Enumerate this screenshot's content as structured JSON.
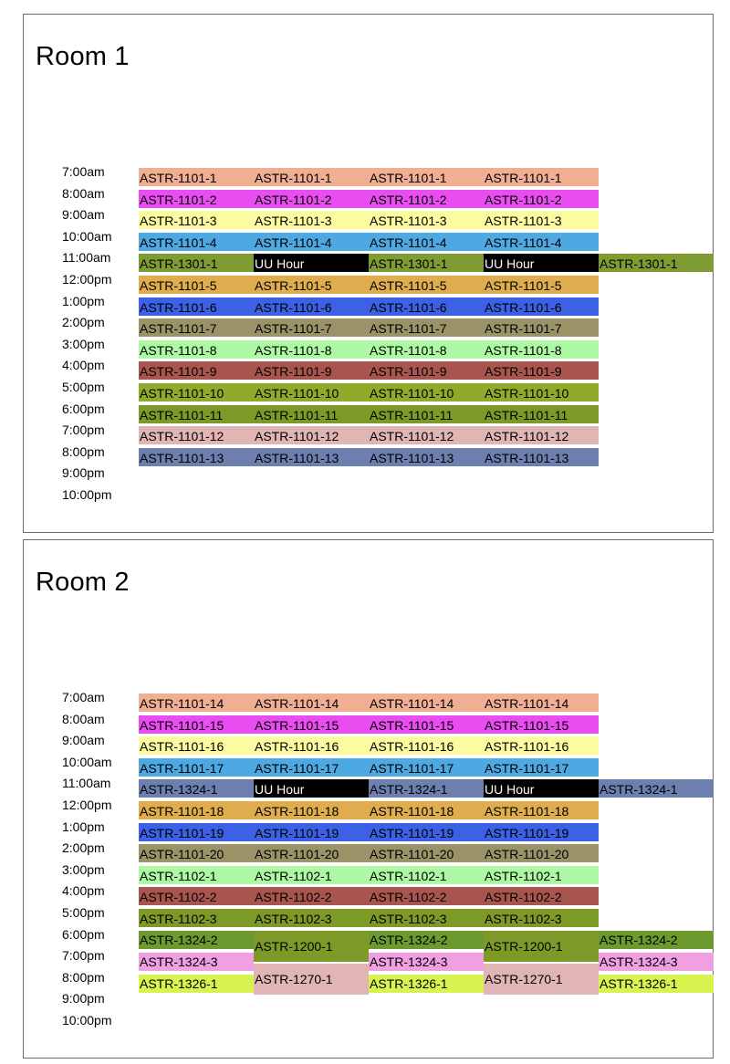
{
  "rooms": [
    {
      "title": "Room 1",
      "times": [
        "7:00am",
        "8:00am",
        "9:00am",
        "10:00am",
        "11:00am",
        "12:00pm",
        "1:00pm",
        "2:00pm",
        "3:00pm",
        "4:00pm",
        "5:00pm",
        "6:00pm",
        "7:00pm",
        "8:00pm",
        "9:00pm",
        "10:00pm"
      ],
      "rows": [
        {
          "color": "#f0ae92",
          "cells": [
            "ASTR-1101-1",
            "ASTR-1101-1",
            "ASTR-1101-1",
            "ASTR-1101-1"
          ]
        },
        {
          "color": "#e94cf0",
          "cells": [
            "ASTR-1101-2",
            "ASTR-1101-2",
            "ASTR-1101-2",
            "ASTR-1101-2"
          ]
        },
        {
          "color": "#fcfba0",
          "cells": [
            "ASTR-1101-3",
            "ASTR-1101-3",
            "ASTR-1101-3",
            "ASTR-1101-3"
          ]
        },
        {
          "color": "#4ea9e2",
          "cells": [
            "ASTR-1101-4",
            "ASTR-1101-4",
            "ASTR-1101-4",
            "ASTR-1101-4"
          ]
        },
        {
          "color": "#7f9c34",
          "cells": [
            "ASTR-1301-1",
            "UU Hour",
            "ASTR-1301-1",
            "UU Hour",
            "ASTR-1301-1"
          ]
        },
        {
          "color": "#e0ad4e",
          "cells": [
            "ASTR-1101-5",
            "ASTR-1101-5",
            "ASTR-1101-5",
            "ASTR-1101-5"
          ]
        },
        {
          "color": "#3c61e5",
          "cells": [
            "ASTR-1101-6",
            "ASTR-1101-6",
            "ASTR-1101-6",
            "ASTR-1101-6"
          ]
        },
        {
          "color": "#9a9368",
          "cells": [
            "ASTR-1101-7",
            "ASTR-1101-7",
            "ASTR-1101-7",
            "ASTR-1101-7"
          ]
        },
        {
          "color": "#adf8a3",
          "cells": [
            "ASTR-1101-8",
            "ASTR-1101-8",
            "ASTR-1101-8",
            "ASTR-1101-8"
          ]
        },
        {
          "color": "#a85550",
          "cells": [
            "ASTR-1101-9",
            "ASTR-1101-9",
            "ASTR-1101-9",
            "ASTR-1101-9"
          ]
        },
        {
          "color": "#8fab2c",
          "cells": [
            "ASTR-1101-10",
            "ASTR-1101-10",
            "ASTR-1101-10",
            "ASTR-1101-10"
          ]
        },
        {
          "color": "#7d9a28",
          "cells": [
            "ASTR-1101-11",
            "ASTR-1101-11",
            "ASTR-1101-11",
            "ASTR-1101-11"
          ]
        },
        {
          "color": "#e2b5b5",
          "cells": [
            "ASTR-1101-12",
            "ASTR-1101-12",
            "ASTR-1101-12",
            "ASTR-1101-12"
          ]
        },
        {
          "color": "#6c7fae",
          "cells": [
            "ASTR-1101-13",
            "ASTR-1101-13",
            "ASTR-1101-13",
            "ASTR-1101-13"
          ]
        }
      ]
    },
    {
      "title": "Room 2",
      "times": [
        "7:00am",
        "8:00am",
        "9:00am",
        "10:00am",
        "11:00am",
        "12:00pm",
        "1:00pm",
        "2:00pm",
        "3:00pm",
        "4:00pm",
        "5:00pm",
        "6:00pm",
        "7:00pm",
        "8:00pm",
        "9:00pm",
        "10:00pm"
      ],
      "rows": [
        {
          "color": "#f0ae92",
          "cells": [
            "ASTR-1101-14",
            "ASTR-1101-14",
            "ASTR-1101-14",
            "ASTR-1101-14"
          ]
        },
        {
          "color": "#e94cf0",
          "cells": [
            "ASTR-1101-15",
            "ASTR-1101-15",
            "ASTR-1101-15",
            "ASTR-1101-15"
          ]
        },
        {
          "color": "#fcfba0",
          "cells": [
            "ASTR-1101-16",
            "ASTR-1101-16",
            "ASTR-1101-16",
            "ASTR-1101-16"
          ]
        },
        {
          "color": "#4ea9e2",
          "cells": [
            "ASTR-1101-17",
            "ASTR-1101-17",
            "ASTR-1101-17",
            "ASTR-1101-17"
          ]
        },
        {
          "color": "#6c7fae",
          "cells": [
            "ASTR-1324-1",
            "UU Hour",
            "ASTR-1324-1",
            "UU Hour",
            "ASTR-1324-1"
          ]
        },
        {
          "color": "#e0ad4e",
          "cells": [
            "ASTR-1101-18",
            "ASTR-1101-18",
            "ASTR-1101-18",
            "ASTR-1101-18"
          ]
        },
        {
          "color": "#3c61e5",
          "cells": [
            "ASTR-1101-19",
            "ASTR-1101-19",
            "ASTR-1101-19",
            "ASTR-1101-19"
          ]
        },
        {
          "color": "#9a9368",
          "cells": [
            "ASTR-1101-20",
            "ASTR-1101-20",
            "ASTR-1101-20",
            "ASTR-1101-20"
          ]
        },
        {
          "color": "#adf8a3",
          "cells": [
            "ASTR-1102-1",
            "ASTR-1102-1",
            "ASTR-1102-1",
            "ASTR-1102-1"
          ]
        },
        {
          "color": "#a85550",
          "cells": [
            "ASTR-1102-2",
            "ASTR-1102-2",
            "ASTR-1102-2",
            "ASTR-1102-2"
          ]
        },
        {
          "color": "#7d9a28",
          "cells": [
            "ASTR-1102-3",
            "ASTR-1102-3",
            "ASTR-1102-3",
            "ASTR-1102-3"
          ]
        }
      ],
      "late_blocks": [
        {
          "col": 0,
          "slot": 0,
          "label": "ASTR-1324-2",
          "color": "#6c9a2e"
        },
        {
          "col": 2,
          "slot": 0,
          "label": "ASTR-1324-2",
          "color": "#6c9a2e"
        },
        {
          "col": 4,
          "slot": 0,
          "label": "ASTR-1324-2",
          "color": "#6c9a2e"
        },
        {
          "col": 0,
          "slot": 1,
          "label": "ASTR-1324-3",
          "color": "#f0a0e0"
        },
        {
          "col": 2,
          "slot": 1,
          "label": "ASTR-1324-3",
          "color": "#f0a0e0"
        },
        {
          "col": 4,
          "slot": 1,
          "label": "ASTR-1324-3",
          "color": "#f0a0e0"
        },
        {
          "col": 0,
          "slot": 2,
          "label": "ASTR-1326-1",
          "color": "#d6f350"
        },
        {
          "col": 2,
          "slot": 2,
          "label": "ASTR-1326-1",
          "color": "#d6f350"
        },
        {
          "col": 4,
          "slot": 2,
          "label": "ASTR-1326-1",
          "color": "#d6f350"
        },
        {
          "col": 1,
          "slot": 3,
          "label": "ASTR-1200-1",
          "color": "#7d9a28"
        },
        {
          "col": 3,
          "slot": 3,
          "label": "ASTR-1200-1",
          "color": "#7d9a28"
        },
        {
          "col": 1,
          "slot": 4,
          "label": "ASTR-1270-1",
          "color": "#e2b5b5"
        },
        {
          "col": 3,
          "slot": 4,
          "label": "ASTR-1270-1",
          "color": "#e2b5b5"
        }
      ]
    }
  ],
  "uu_hour_color": "#000000"
}
